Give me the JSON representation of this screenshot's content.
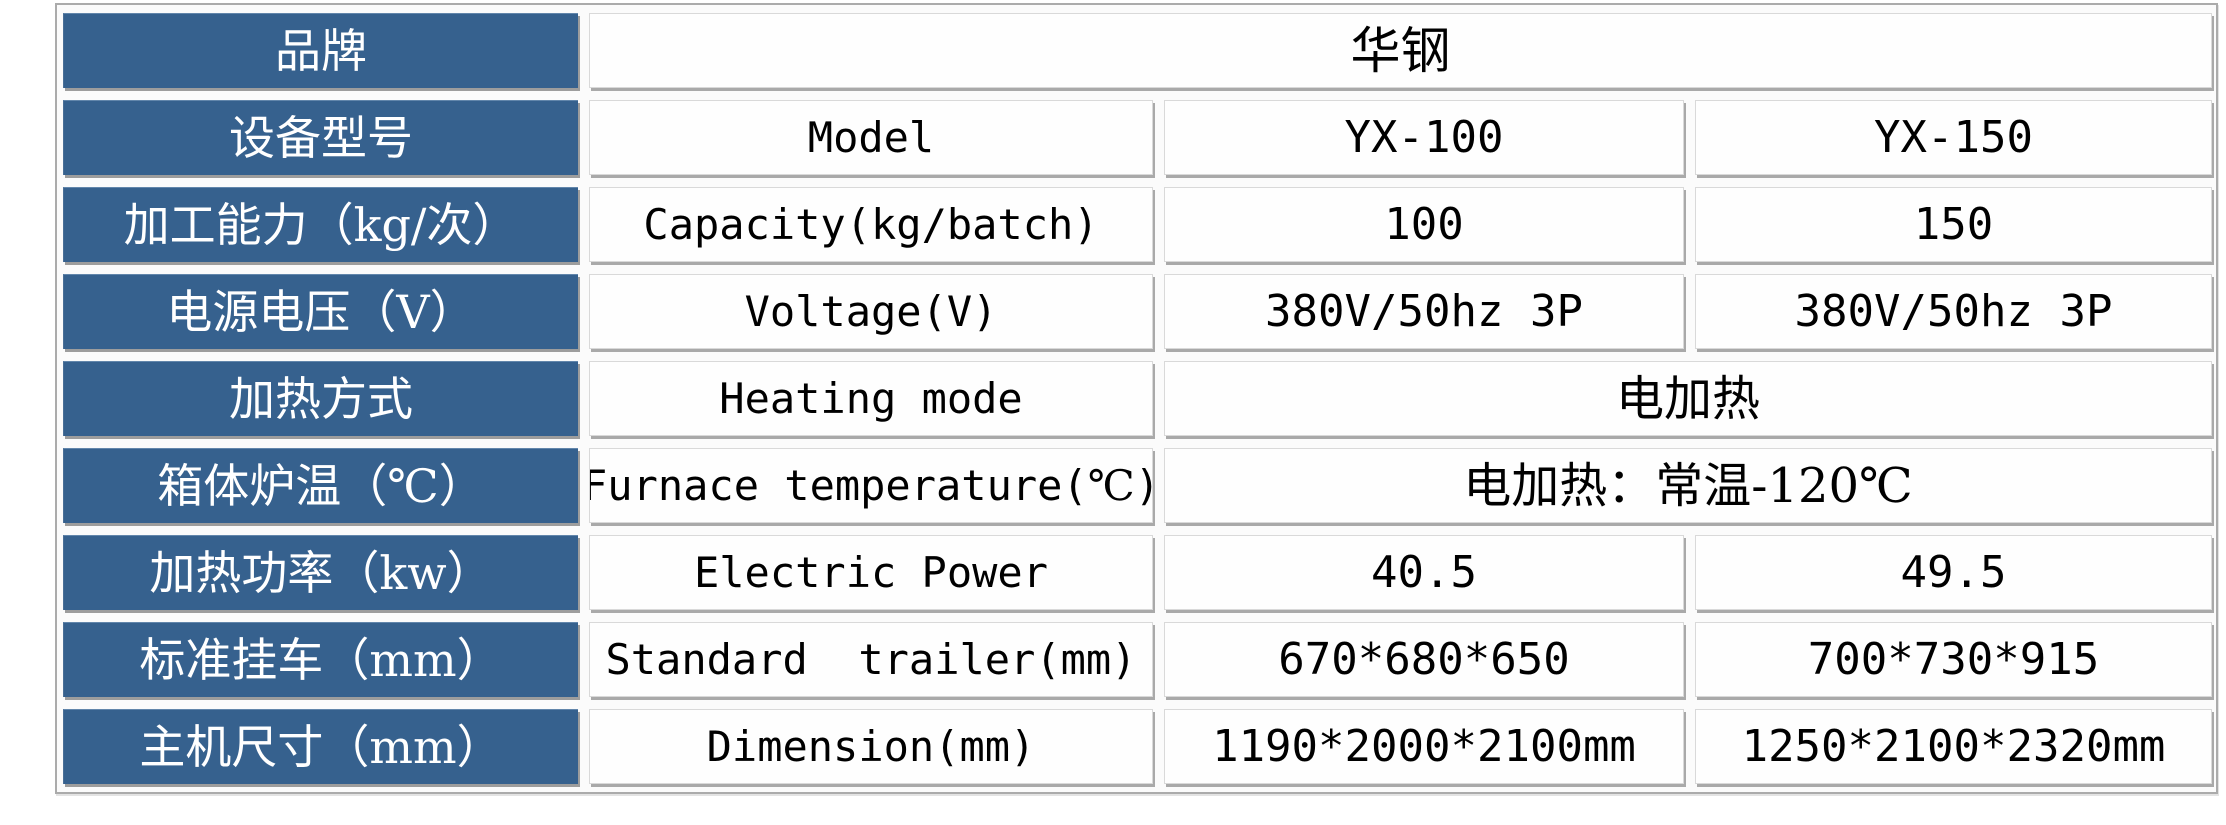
{
  "colors": {
    "header_bg": "#36618E",
    "header_text": "#FFFFFF",
    "body_text": "#000000",
    "cell_shadow": "#A9A9A9",
    "frame_border": "#ABABAB"
  },
  "table": {
    "rows": [
      {
        "label": "品牌",
        "cells": [
          {
            "text": "华钢",
            "span": 3
          }
        ]
      },
      {
        "label": "设备型号",
        "cells": [
          {
            "text": "Model"
          },
          {
            "text": "YX-100"
          },
          {
            "text": "YX-150"
          }
        ]
      },
      {
        "label": "加工能力（kg/次）",
        "cells": [
          {
            "text": "Capacity(kg/batch)"
          },
          {
            "text": "100"
          },
          {
            "text": "150"
          }
        ]
      },
      {
        "label": "电源电压（V）",
        "cells": [
          {
            "text": "Voltage(V)"
          },
          {
            "text": "380V/50hz 3P"
          },
          {
            "text": "380V/50hz 3P"
          }
        ]
      },
      {
        "label": "加热方式",
        "cells": [
          {
            "text": "Heating mode"
          },
          {
            "text": "电加热",
            "span": 2
          }
        ]
      },
      {
        "label": "箱体炉温（℃）",
        "cells": [
          {
            "text": "Furnace temperature(℃)"
          },
          {
            "text": "电加热：常温-120℃",
            "span": 2
          }
        ]
      },
      {
        "label": "加热功率（kw）",
        "cells": [
          {
            "text": "Electric Power"
          },
          {
            "text": "40.5"
          },
          {
            "text": "49.5"
          }
        ]
      },
      {
        "label": "标准挂车（mm）",
        "cells": [
          {
            "text": "Standard  trailer(mm)"
          },
          {
            "text": "670*680*650"
          },
          {
            "text": "700*730*915"
          }
        ]
      },
      {
        "label": "主机尺寸（mm）",
        "cells": [
          {
            "text": "Dimension(mm)"
          },
          {
            "text": "1190*2000*2100mm"
          },
          {
            "text": "1250*2100*2320mm"
          }
        ]
      }
    ]
  }
}
